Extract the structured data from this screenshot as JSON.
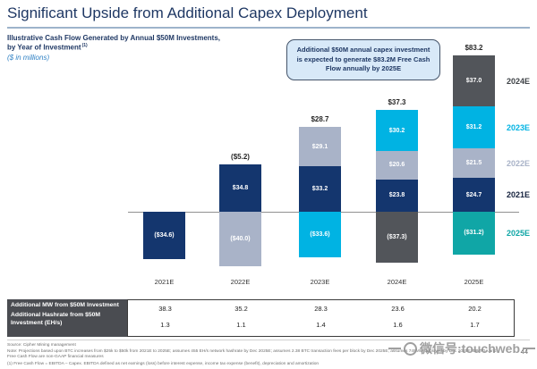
{
  "slide": {
    "title": "Significant Upside from Additional Capex Deployment",
    "page_number": "44",
    "watermark_text": "微信号:touchweb"
  },
  "header": {
    "subtitle_line1": "Illustrative Cash Flow Generated by Annual $50M Investments,",
    "subtitle_line2": "by Year of Investment",
    "subtitle_footnote_ref": "(1)",
    "units_note": "($ in millions)"
  },
  "callout": {
    "text": "Additional $50M annual capex investment is expected to generate $83.2M Free Cash Flow annually by 2025E"
  },
  "chart_data": {
    "type": "bar",
    "stacked": true,
    "orientation": "vertical",
    "title": "Illustrative Cash Flow Generated by Annual $50M Investments, by Year of Investment",
    "units": "$ in millions",
    "grid": false,
    "baseline_value": 0,
    "categories": [
      "2021E",
      "2022E",
      "2023E",
      "2024E",
      "2025E"
    ],
    "series_colors": {
      "2021E": "#14366E",
      "2022E": "#A9B3C8",
      "2023E": "#00B3E3",
      "2024E": "#52555A",
      "2025E": "#10A6A6"
    },
    "legend": [
      {
        "label": "2024E",
        "color": "#3F4347"
      },
      {
        "label": "2023E",
        "color": "#00B3E3"
      },
      {
        "label": "2022E",
        "color": "#A9B3C8"
      },
      {
        "label": "2021E",
        "color": "#14213D"
      },
      {
        "label": "2025E",
        "color": "#10A6A6"
      }
    ],
    "bars": [
      {
        "category": "2021E",
        "total_label": null,
        "above": [],
        "below": [
          {
            "series": "2021E",
            "label": "($34.6)",
            "value": 34.6
          }
        ]
      },
      {
        "category": "2022E",
        "total_label": "($5.2)",
        "above": [
          {
            "series": "2021E",
            "label": "$34.8",
            "value": 34.8
          }
        ],
        "below": [
          {
            "series": "2022E",
            "label": "($40.0)",
            "value": 40.0
          }
        ]
      },
      {
        "category": "2023E",
        "total_label": "$28.7",
        "above": [
          {
            "series": "2022E",
            "label": "$29.1",
            "value": 29.1
          },
          {
            "series": "2021E",
            "label": "$33.2",
            "value": 33.2
          }
        ],
        "below": [
          {
            "series": "2023E",
            "label": "($33.6)",
            "value": 33.6
          }
        ]
      },
      {
        "category": "2024E",
        "total_label": "$37.3",
        "above": [
          {
            "series": "2023E",
            "label": "$30.2",
            "value": 30.2
          },
          {
            "series": "2022E",
            "label": "$20.6",
            "value": 20.6
          },
          {
            "series": "2021E",
            "label": "$23.8",
            "value": 23.8
          }
        ],
        "below": [
          {
            "series": "2024E",
            "label": "($37.3)",
            "value": 37.3
          }
        ]
      },
      {
        "category": "2025E",
        "total_label": "$83.2",
        "above": [
          {
            "series": "2024E",
            "label": "$37.0",
            "value": 37.0
          },
          {
            "series": "2023E",
            "label": "$31.2",
            "value": 31.2
          },
          {
            "series": "2022E",
            "label": "$21.5",
            "value": 21.5
          },
          {
            "series": "2021E",
            "label": "$24.7",
            "value": 24.7
          }
        ],
        "below": [
          {
            "series": "2025E",
            "label": "($31.2)",
            "value": 31.2
          }
        ]
      }
    ]
  },
  "table": {
    "rows": [
      {
        "label": "Additional MW from $50M Investment",
        "values": [
          "38.3",
          "35.2",
          "28.3",
          "23.6",
          "20.2"
        ]
      },
      {
        "label": "Additional Hashrate from $50M Investment (EH/s)",
        "values": [
          "1.3",
          "1.1",
          "1.4",
          "1.6",
          "1.7"
        ]
      }
    ]
  },
  "footnotes": {
    "source": "Source: Cipher Mining management",
    "note": "Note: Projections based upon BTC increases from $25k to $50k from 2021E to 2025E; assumes 455 EH/s network hashrate by Dec 2025E; assumes 2.38 BTC transaction fees per block by Dec 2025E; assumes 745MW deployed by Dec 2025E; EBITDA and Free Cash Flow are non-GAAP financial measures",
    "footnote1": "(1) Free Cash Flow = EBITDA – Capex. EBITDA defined as net earnings (loss) before interest expense, income tax expense (benefit), depreciation and amortization"
  },
  "colors": {
    "title_navy": "#1F3864",
    "accent_blue": "#2E80C4",
    "callout_fill": "#D8E9F8",
    "callout_border": "#44546A",
    "table_label_bg": "#4A4C51",
    "axis_line": "#909090"
  }
}
